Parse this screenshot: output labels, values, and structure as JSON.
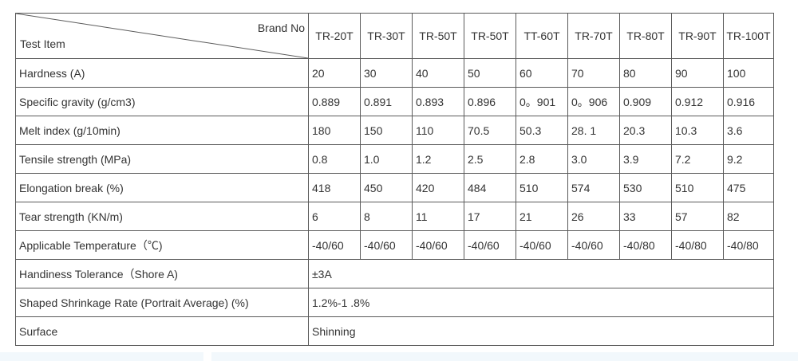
{
  "table": {
    "corner_top_right": "Brand No",
    "corner_bottom_left": "Test Item",
    "brands": [
      "TR-20T",
      "TR-30T",
      "TR-50T",
      "TR-50T",
      "TT-60T",
      "TR-70T",
      "TR-80T",
      "TR-90T",
      "TR-100T"
    ],
    "rows": [
      {
        "label": "Hardness (A)",
        "values": [
          "20",
          "30",
          "40",
          "50",
          "60",
          "70",
          "80",
          "90",
          "100"
        ]
      },
      {
        "label": "Specific gravity (g/cm3)",
        "values": [
          "0.889",
          "0.891",
          "0.893",
          "0.896",
          "0。901",
          "0。906",
          "0.909",
          "0.912",
          "0.916"
        ]
      },
      {
        "label": "Melt index (g/10min)",
        "values": [
          "180",
          "150",
          "110",
          "70.5",
          "50.3",
          "28. 1",
          "20.3",
          "10.3",
          "3.6"
        ]
      },
      {
        "label": "Tensile strength (MPa)",
        "values": [
          "0.8",
          "1.0",
          "1.2",
          "2.5",
          "2.8",
          "3.0",
          "3.9",
          "7.2",
          "9.2"
        ]
      },
      {
        "label": "Elongation break (%)",
        "values": [
          "418",
          "450",
          "420",
          "484",
          "510",
          "574",
          "530",
          "510",
          "475"
        ]
      },
      {
        "label": "Tear strength (KN/m)",
        "values": [
          "6",
          "8",
          "11",
          "17",
          "21",
          "26",
          "33",
          "57",
          "82"
        ]
      },
      {
        "label": "Applicable Temperature（℃)",
        "values": [
          "-40/60",
          "-40/60",
          "-40/60",
          "-40/60",
          "-40/60",
          "-40/60",
          "-40/80",
          "-40/80",
          "-40/80"
        ]
      }
    ],
    "merged_rows": [
      {
        "label": "Handiness Tolerance（Shore A)",
        "value": "±3A"
      },
      {
        "label": "Shaped Shrinkage Rate (Portrait Average)   (%)",
        "value": "1.2%-1 .8%"
      },
      {
        "label": "Surface",
        "value": "Shinning"
      }
    ]
  }
}
